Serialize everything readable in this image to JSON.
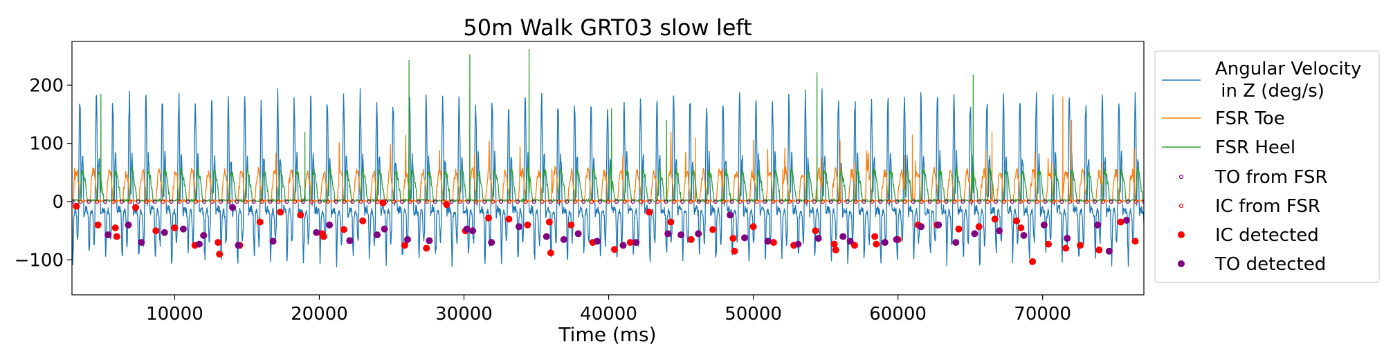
{
  "chart_data": {
    "type": "line",
    "title": "50m Walk GRT03 slow left",
    "xlabel": "Time (ms)",
    "ylabel": "",
    "xlim": [
      2900,
      77000
    ],
    "ylim": [
      -160,
      275
    ],
    "x_ticks": [
      10000,
      20000,
      30000,
      40000,
      50000,
      60000,
      70000
    ],
    "x_tick_labels": [
      "10000",
      "20000",
      "30000",
      "40000",
      "50000",
      "60000",
      "70000"
    ],
    "y_ticks": [
      -100,
      0,
      100,
      200
    ],
    "y_tick_labels": [
      "−100",
      "0",
      "100",
      "200"
    ],
    "grid": false,
    "legend_position": "outside-right",
    "series": [
      {
        "name": "Angular Velocity\n in Z (deg/s)",
        "kind": "line",
        "color": "#1f77b4",
        "description": "gyro Z signal, ~65 gait cycles, peaks 150-210, troughs -60 to -140"
      },
      {
        "name": "FSR Toe",
        "kind": "line",
        "color": "#ff7f0e",
        "description": "toe pressure bursts 30-70, occasional peaks 100-180"
      },
      {
        "name": "FSR Heel",
        "kind": "line",
        "color": "#2ca02c",
        "description": "heel pressure bursts 20-60, occasional spikes 180-262"
      },
      {
        "name": "TO from FSR",
        "kind": "marker-hollow",
        "color": "#800080",
        "y": 0
      },
      {
        "name": "IC from FSR",
        "kind": "marker-hollow",
        "color": "#ff0000",
        "y": 0
      },
      {
        "name": "IC detected",
        "kind": "marker-filled",
        "color": "#ff0000"
      },
      {
        "name": "TO detected",
        "kind": "marker-filled",
        "color": "#800080"
      }
    ],
    "ic_detected": [
      [
        3200,
        -8
      ],
      [
        4700,
        -40
      ],
      [
        5900,
        -45
      ],
      [
        6000,
        -60
      ],
      [
        7300,
        -10
      ],
      [
        8700,
        -50
      ],
      [
        10000,
        -45
      ],
      [
        11400,
        -75
      ],
      [
        13000,
        -70
      ],
      [
        13100,
        -90
      ],
      [
        14500,
        -75
      ],
      [
        15900,
        -35
      ],
      [
        17300,
        -18
      ],
      [
        18700,
        -23
      ],
      [
        20200,
        -55
      ],
      [
        20300,
        -60
      ],
      [
        21700,
        -48
      ],
      [
        23000,
        -33
      ],
      [
        24400,
        -2
      ],
      [
        25900,
        -75
      ],
      [
        27400,
        -80
      ],
      [
        28800,
        -5
      ],
      [
        30100,
        -50
      ],
      [
        31700,
        -28
      ],
      [
        33100,
        -30
      ],
      [
        34400,
        -40
      ],
      [
        35900,
        -35
      ],
      [
        36000,
        -88
      ],
      [
        37400,
        -40
      ],
      [
        38900,
        -70
      ],
      [
        40400,
        -82
      ],
      [
        41500,
        -70
      ],
      [
        42800,
        -18
      ],
      [
        44300,
        -35
      ],
      [
        45700,
        -65
      ],
      [
        47200,
        -48
      ],
      [
        48600,
        -63
      ],
      [
        48700,
        -85
      ],
      [
        50000,
        -43
      ],
      [
        51400,
        -70
      ],
      [
        52800,
        -75
      ],
      [
        54300,
        -50
      ],
      [
        55600,
        -73
      ],
      [
        55700,
        -83
      ],
      [
        57000,
        -75
      ],
      [
        58400,
        -60
      ],
      [
        58500,
        -73
      ],
      [
        60000,
        -65
      ],
      [
        61400,
        -40
      ],
      [
        62700,
        -40
      ],
      [
        64200,
        -47
      ],
      [
        65600,
        -43
      ],
      [
        66700,
        -30
      ],
      [
        68200,
        -33
      ],
      [
        68500,
        -45
      ],
      [
        69300,
        -103
      ],
      [
        70400,
        -73
      ],
      [
        71600,
        -80
      ],
      [
        72600,
        -75
      ],
      [
        73900,
        -83
      ],
      [
        75400,
        -35
      ],
      [
        76400,
        -68
      ]
    ],
    "to_detected": [
      [
        5400,
        -57
      ],
      [
        6800,
        -40
      ],
      [
        7700,
        -70
      ],
      [
        9300,
        -53
      ],
      [
        10600,
        -47
      ],
      [
        11700,
        -73
      ],
      [
        12000,
        -58
      ],
      [
        14000,
        -10
      ],
      [
        14400,
        -75
      ],
      [
        16800,
        -68
      ],
      [
        19800,
        -53
      ],
      [
        20700,
        -40
      ],
      [
        22100,
        -67
      ],
      [
        24000,
        -57
      ],
      [
        24500,
        -47
      ],
      [
        26100,
        -65
      ],
      [
        27600,
        -67
      ],
      [
        30200,
        -47
      ],
      [
        30600,
        -50
      ],
      [
        31900,
        -70
      ],
      [
        33800,
        -43
      ],
      [
        35700,
        -60
      ],
      [
        36900,
        -65
      ],
      [
        37900,
        -55
      ],
      [
        39200,
        -68
      ],
      [
        41000,
        -75
      ],
      [
        41900,
        -70
      ],
      [
        44100,
        -55
      ],
      [
        45000,
        -57
      ],
      [
        46200,
        -55
      ],
      [
        48400,
        -23
      ],
      [
        49400,
        -62
      ],
      [
        51000,
        -68
      ],
      [
        53100,
        -73
      ],
      [
        54500,
        -63
      ],
      [
        56200,
        -60
      ],
      [
        56700,
        -68
      ],
      [
        59100,
        -70
      ],
      [
        59900,
        -65
      ],
      [
        61600,
        -43
      ],
      [
        62800,
        -40
      ],
      [
        64000,
        -70
      ],
      [
        65300,
        -55
      ],
      [
        67000,
        -50
      ],
      [
        68700,
        -58
      ],
      [
        70100,
        -40
      ],
      [
        71700,
        -63
      ],
      [
        73800,
        -40
      ],
      [
        74600,
        -85
      ],
      [
        75800,
        -32
      ]
    ]
  }
}
